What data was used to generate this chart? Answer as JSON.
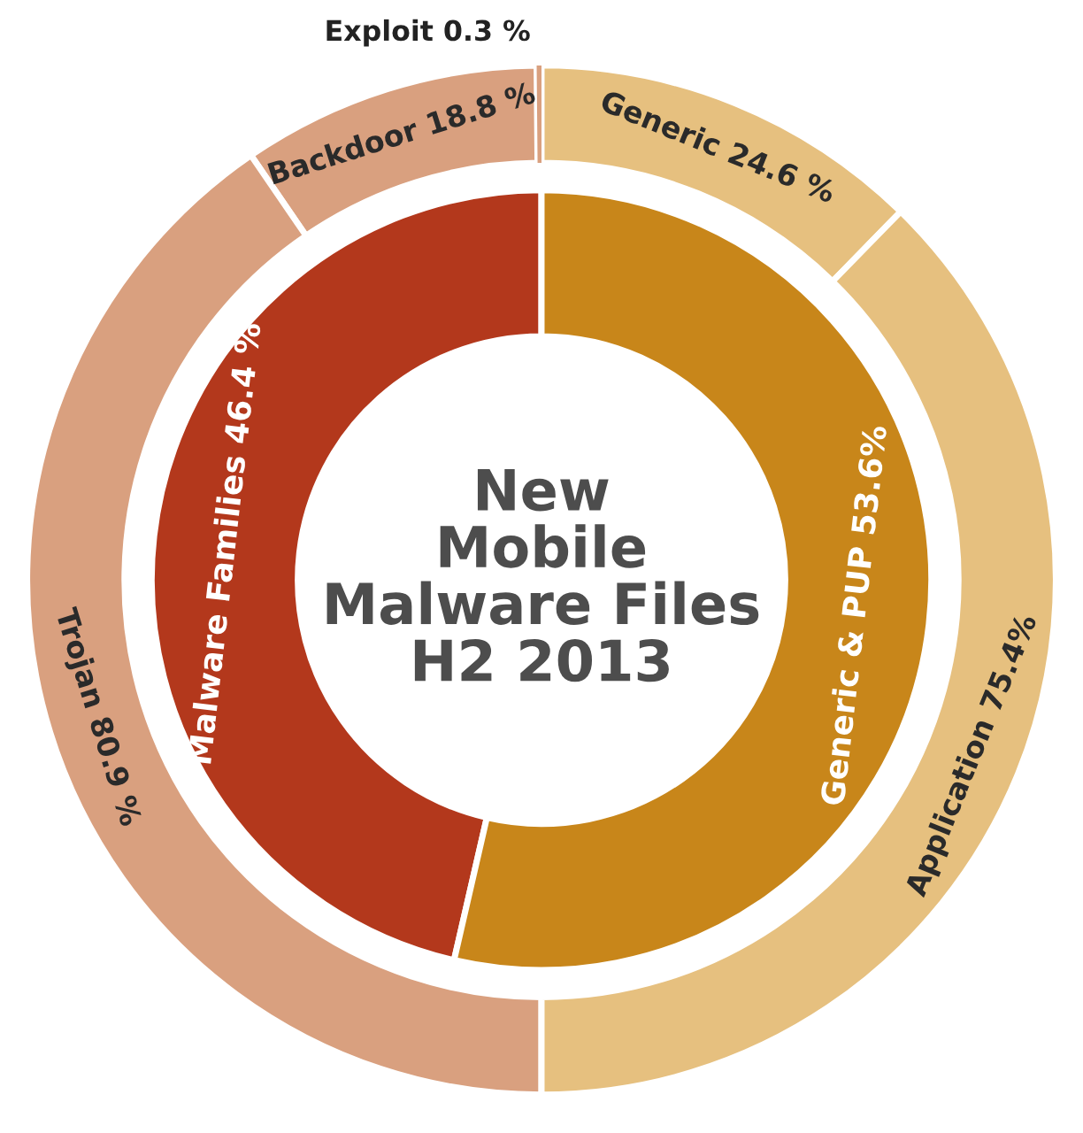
{
  "chart_data": {
    "type": "donut",
    "title": "New\nMobile\nMalware Files\nH2 2013",
    "categories": [
      "Malware Families",
      "Generic & PUP",
      "Exploit",
      "Backdoor",
      "Trojan",
      "Generic",
      "Application"
    ],
    "series": [
      {
        "values": [
          46.4,
          53.6,
          null,
          null,
          null,
          null,
          null
        ],
        "colors": [
          "#b3381c",
          "#c8861a",
          null,
          null,
          null,
          null,
          null
        ],
        "value_labels": [
          "46.4 %",
          "53.6%",
          null,
          null,
          null,
          null,
          null
        ]
      },
      {
        "values": [
          null,
          null,
          0.3,
          18.8,
          80.9,
          24.6,
          75.4
        ],
        "colors": [
          null,
          null,
          "#d9a07f",
          "#d9a07f",
          "#d9a07f",
          "#e6c07f",
          "#e6c07f"
        ],
        "value_labels": [
          null,
          null,
          "0.3 %",
          "18.8 %",
          "80.9 %",
          "24.6 %",
          "75.4%"
        ]
      }
    ]
  }
}
